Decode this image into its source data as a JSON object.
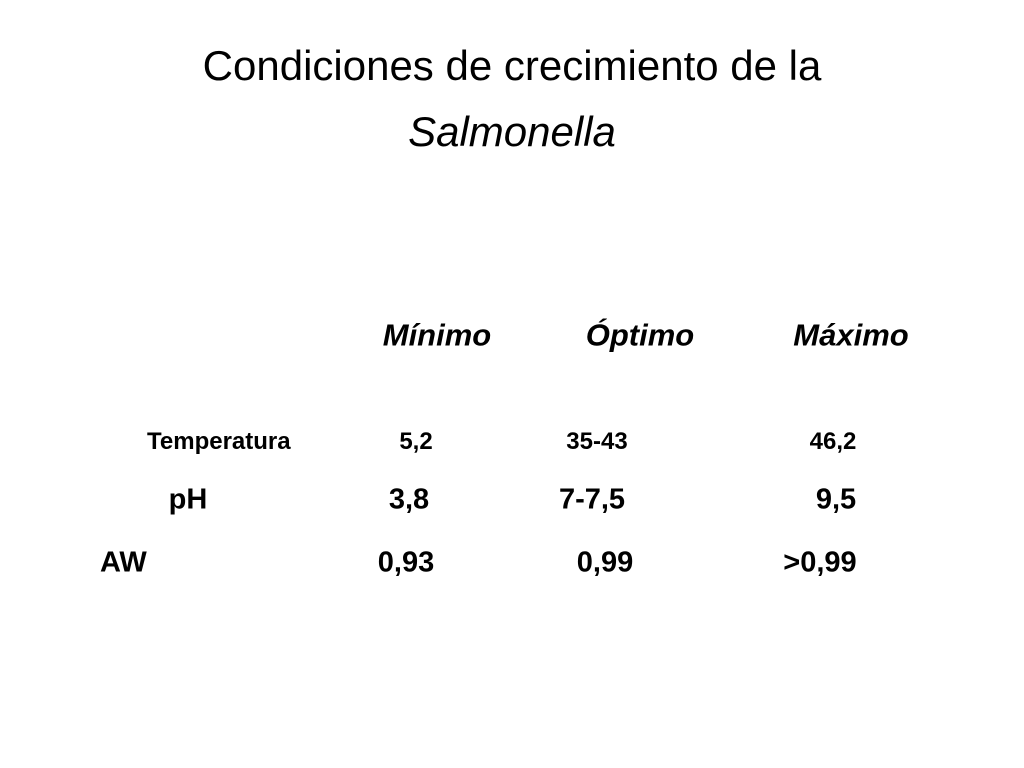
{
  "title": {
    "line1": "Condiciones de crecimiento de la",
    "line2": "Salmonella"
  },
  "table": {
    "header": [
      "Mínimo",
      "Óptimo",
      "Máximo"
    ],
    "rows": [
      [
        "Temperatura",
        "5,2",
        "35-43",
        "46,2"
      ],
      [
        "pH",
        "3,8",
        "7-7,5",
        "9,5"
      ],
      [
        "AW",
        "0,93",
        "0,99",
        ">0,99"
      ]
    ]
  }
}
